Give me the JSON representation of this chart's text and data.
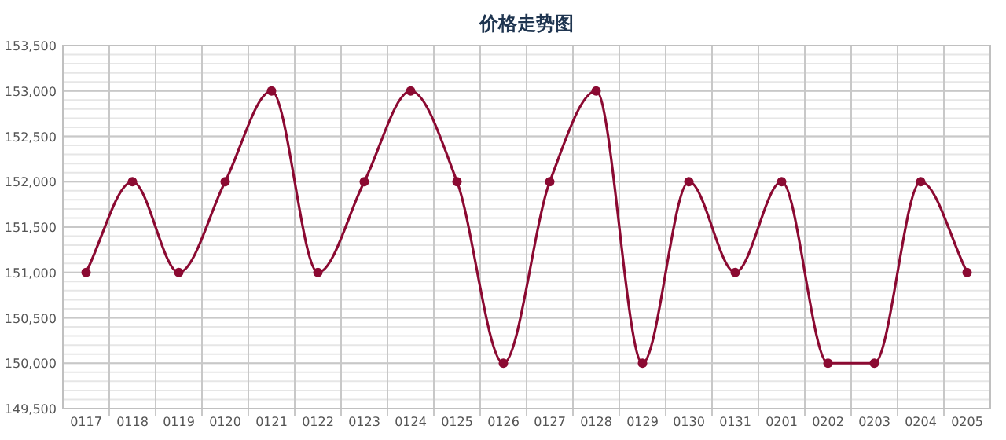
{
  "chart_data": {
    "type": "line",
    "title": "价格走势图",
    "categories": [
      "0117",
      "0118",
      "0119",
      "0120",
      "0121",
      "0122",
      "0123",
      "0124",
      "0125",
      "0126",
      "0127",
      "0128",
      "0129",
      "0130",
      "0131",
      "0201",
      "0202",
      "0203",
      "0204",
      "0205"
    ],
    "values": [
      151000,
      152000,
      151000,
      152000,
      153000,
      151000,
      152000,
      153000,
      152000,
      150000,
      152000,
      153000,
      150000,
      152000,
      151000,
      152000,
      150000,
      150000,
      152000,
      151000
    ],
    "color": "#8b0a32",
    "marker": "circle",
    "grid": true,
    "ylim": [
      149500,
      153500
    ],
    "yticks": [
      {
        "value": 149500,
        "label": "149,500"
      },
      {
        "value": 150000,
        "label": "150,000"
      },
      {
        "value": 150500,
        "label": "150,500"
      },
      {
        "value": 151000,
        "label": "151,000"
      },
      {
        "value": 151500,
        "label": "151,500"
      },
      {
        "value": 152000,
        "label": "152,000"
      },
      {
        "value": 152500,
        "label": "152,500"
      },
      {
        "value": 153000,
        "label": "153,000"
      },
      {
        "value": 153500,
        "label": "153,500"
      }
    ]
  }
}
